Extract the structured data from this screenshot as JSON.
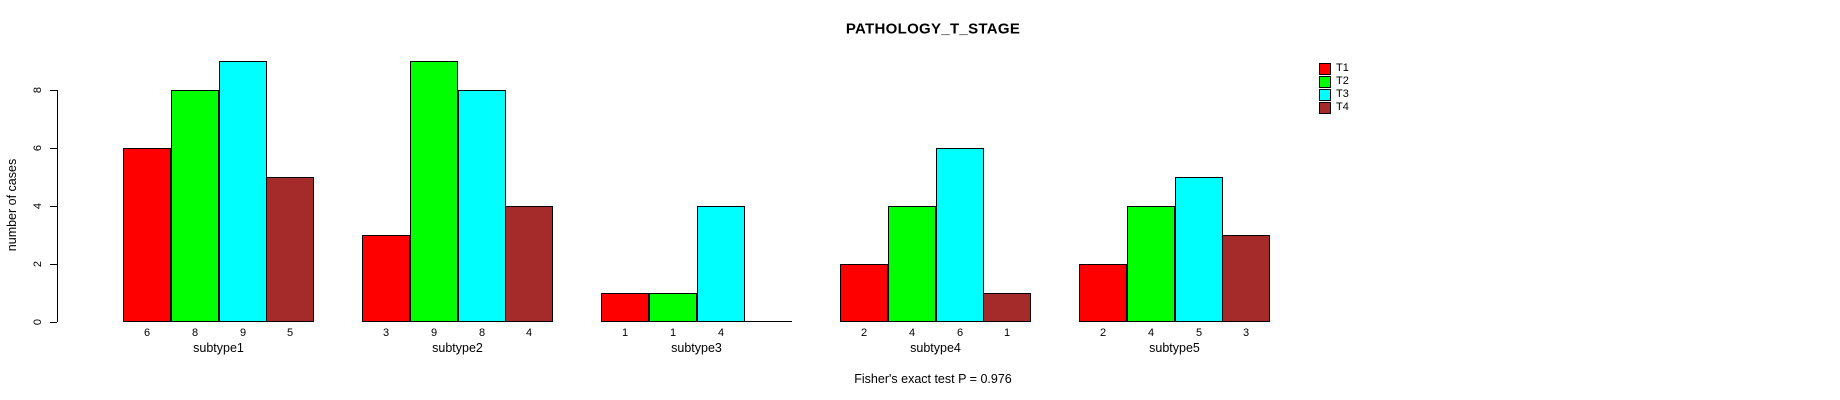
{
  "chart_data": {
    "type": "bar",
    "title": "PATHOLOGY_T_STAGE",
    "ylabel": "number of cases",
    "xlabel": "",
    "ylim": [
      0,
      9
    ],
    "yticks": [
      0,
      2,
      4,
      6,
      8
    ],
    "grid": false,
    "legend_position": "right",
    "categories": [
      "subtype1",
      "subtype2",
      "subtype3",
      "subtype4",
      "subtype5"
    ],
    "series": [
      {
        "name": "T1",
        "color": "#ff0000",
        "values": [
          6,
          3,
          1,
          2,
          2
        ]
      },
      {
        "name": "T2",
        "color": "#00ff00",
        "values": [
          8,
          9,
          1,
          4,
          4
        ]
      },
      {
        "name": "T3",
        "color": "#00ffff",
        "values": [
          9,
          8,
          4,
          6,
          5
        ]
      },
      {
        "name": "T4",
        "color": "#a52a2a",
        "values": [
          5,
          4,
          0,
          1,
          3
        ]
      }
    ],
    "bar_value_labels": [
      [
        "6",
        "8",
        "9",
        "5"
      ],
      [
        "3",
        "9",
        "8",
        "4"
      ],
      [
        "1",
        "1",
        "4",
        ""
      ],
      [
        "2",
        "4",
        "6",
        "1"
      ],
      [
        "2",
        "4",
        "5",
        "3"
      ]
    ],
    "annotation": "Fisher's exact test P = 0.976"
  },
  "legend": {
    "items": [
      {
        "label": "T1",
        "color": "#ff0000"
      },
      {
        "label": "T2",
        "color": "#00ff00"
      },
      {
        "label": "T3",
        "color": "#00ffff"
      },
      {
        "label": "T4",
        "color": "#a52a2a"
      }
    ]
  }
}
